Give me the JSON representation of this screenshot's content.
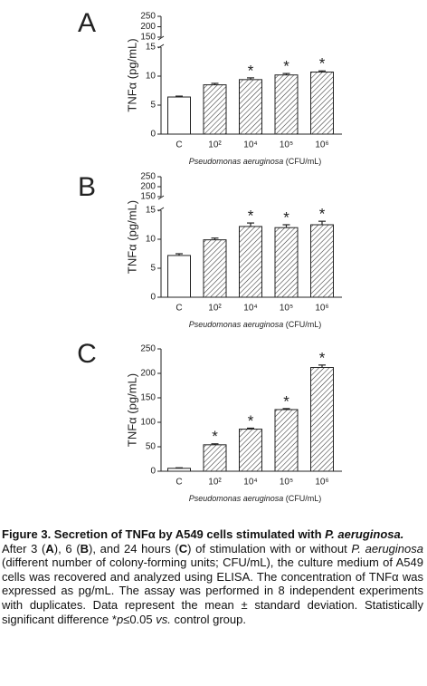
{
  "chart_data": [
    {
      "type": "bar",
      "panel_label": "A",
      "ylabel": "TNFα (pg/mL)",
      "categories": [
        "C",
        "10²",
        "10⁴",
        "10⁵",
        "10⁶"
      ],
      "values": [
        6.4,
        8.5,
        9.4,
        10.2,
        10.7
      ],
      "errors": [
        0.15,
        0.25,
        0.3,
        0.25,
        0.2
      ],
      "significance": [
        null,
        null,
        "*",
        "*",
        "*"
      ],
      "hatched": [
        false,
        true,
        true,
        true,
        true
      ],
      "ylim": [
        0,
        15
      ],
      "yticks": [
        0,
        5,
        10,
        15
      ],
      "upper_ylim": [
        150,
        250
      ],
      "upper_yticks": [
        150,
        200,
        250
      ],
      "xlabel": [
        "Pseudomonas aeruginosa",
        "(CFU/mL)"
      ],
      "color": "#222222"
    },
    {
      "type": "bar",
      "panel_label": "B",
      "ylabel": "TNFα (pg/mL)",
      "categories": [
        "C",
        "10²",
        "10⁴",
        "10⁵",
        "10⁶"
      ],
      "values": [
        7.2,
        9.9,
        12.2,
        12.0,
        12.5
      ],
      "errors": [
        0.3,
        0.3,
        0.6,
        0.5,
        0.6
      ],
      "significance": [
        null,
        null,
        "*",
        "*",
        "*"
      ],
      "hatched": [
        false,
        true,
        true,
        true,
        true
      ],
      "ylim": [
        0,
        15
      ],
      "yticks": [
        0,
        5,
        10,
        15
      ],
      "upper_ylim": [
        150,
        250
      ],
      "upper_yticks": [
        150,
        200,
        250
      ],
      "xlabel": [
        "Pseudomonas aeruginosa",
        "(CFU/mL)"
      ],
      "color": "#222222"
    },
    {
      "type": "bar",
      "panel_label": "C",
      "ylabel": "TNFα (pg/mL)",
      "categories": [
        "C",
        "10²",
        "10⁴",
        "10⁵",
        "10⁶"
      ],
      "values": [
        6,
        54,
        86,
        126,
        212
      ],
      "errors": [
        1,
        2,
        2,
        2,
        5
      ],
      "significance": [
        null,
        "*",
        "*",
        "*",
        "*"
      ],
      "hatched": [
        false,
        true,
        true,
        true,
        true
      ],
      "ylim": [
        0,
        250
      ],
      "yticks": [
        0,
        50,
        100,
        150,
        200,
        250
      ],
      "xlabel": [
        "Pseudomonas aeruginosa",
        "(CFU/mL)"
      ],
      "color": "#222222"
    }
  ],
  "caption": {
    "title": [
      {
        "text": "Figure 3. Secretion of TNFα by A549 cells stimulated with ",
        "style": "bold"
      },
      {
        "text": "P. aeruginosa.",
        "style": "bold-italic"
      }
    ],
    "body": [
      {
        "text": "After 3 (",
        "style": "normal"
      },
      {
        "text": "A",
        "style": "bold"
      },
      {
        "text": "), 6 (",
        "style": "normal"
      },
      {
        "text": "B",
        "style": "bold"
      },
      {
        "text": "), and 24 hours (",
        "style": "normal"
      },
      {
        "text": "C",
        "style": "bold"
      },
      {
        "text": ") of stimulation with or without ",
        "style": "normal"
      },
      {
        "text": "P. aeruginosa",
        "style": "italic"
      },
      {
        "text": " (different number of colony-forming units; CFU/mL), the culture medium of A549 cells was recovered and analyzed using ELISA. The concentration of TNFα was expressed as pg/mL. The assay was performed in 8 independent experiments with duplicates. Data represent the mean ± standard deviation. Statistically significant difference *",
        "style": "normal"
      },
      {
        "text": "p",
        "style": "italic"
      },
      {
        "text": "≤0.05 ",
        "style": "normal"
      },
      {
        "text": "vs.",
        "style": "italic"
      },
      {
        "text": " control group.",
        "style": "normal"
      }
    ]
  }
}
